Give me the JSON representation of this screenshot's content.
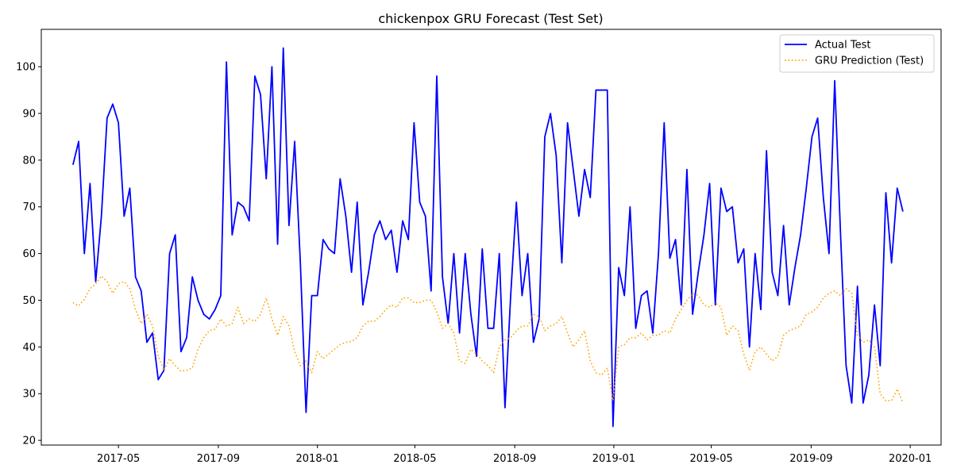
{
  "chart_data": {
    "type": "line",
    "title": "chickenpox GRU Forecast (Test Set)",
    "xlabel": "",
    "ylabel": "",
    "xlim": [
      "2017-01-26",
      "2020-02-08"
    ],
    "ylim": [
      19,
      108
    ],
    "yticks": [
      20,
      30,
      40,
      50,
      60,
      70,
      80,
      90,
      100
    ],
    "xticks": [
      {
        "date": "2017-05-01",
        "label": "2017-05"
      },
      {
        "date": "2017-09-01",
        "label": "2017-09"
      },
      {
        "date": "2018-01-01",
        "label": "2018-01"
      },
      {
        "date": "2018-05-01",
        "label": "2018-05"
      },
      {
        "date": "2018-09-01",
        "label": "2018-09"
      },
      {
        "date": "2019-01-01",
        "label": "2019-01"
      },
      {
        "date": "2019-05-01",
        "label": "2019-05"
      },
      {
        "date": "2019-09-01",
        "label": "2019-09"
      },
      {
        "date": "2020-01-01",
        "label": "2020-01"
      }
    ],
    "x_start": "2017-03-06",
    "x_step_days": 7,
    "grid": false,
    "legend_position": "top-right",
    "series": [
      {
        "name": "Actual Test",
        "color": "#0000ff",
        "style": "solid",
        "values": [
          79,
          84,
          60,
          75,
          54,
          68,
          89,
          92,
          88,
          68,
          74,
          55,
          52,
          41,
          43,
          33,
          35,
          60,
          64,
          39,
          42,
          55,
          50,
          47,
          46,
          48,
          51,
          101,
          64,
          71,
          70,
          67,
          98,
          94,
          76,
          100,
          62,
          104,
          66,
          84,
          58,
          26,
          51,
          51,
          63,
          61,
          60,
          76,
          68,
          56,
          71,
          49,
          56,
          64,
          67,
          63,
          65,
          56,
          67,
          63,
          88,
          71,
          68,
          52,
          98,
          55,
          45,
          60,
          43,
          60,
          47,
          38,
          61,
          44,
          44,
          60,
          27,
          51,
          71,
          51,
          60,
          41,
          46,
          85,
          90,
          81,
          58,
          88,
          78,
          68,
          78,
          72,
          95,
          95,
          95,
          23,
          57,
          51,
          70,
          44,
          51,
          52,
          43,
          60,
          88,
          59,
          63,
          49,
          78,
          47,
          56,
          64,
          75,
          49,
          74,
          69,
          70,
          58,
          61,
          40,
          60,
          48,
          82,
          56,
          51,
          66,
          49,
          57,
          64,
          74,
          85,
          89,
          72,
          60,
          97,
          65,
          36,
          28,
          53,
          28,
          34,
          49,
          36,
          73,
          58,
          74,
          69
        ]
      },
      {
        "name": "GRU Prediction (Test)",
        "color": "#ffa500",
        "style": "dotted",
        "values": [
          49.5,
          48.8,
          50.2,
          52.5,
          53.5,
          55.2,
          54.0,
          51.5,
          53.5,
          54.0,
          52.5,
          48.0,
          45.0,
          47.0,
          44.5,
          38.0,
          35.0,
          37.5,
          36.0,
          34.8,
          35.0,
          35.5,
          39.5,
          42.0,
          43.5,
          43.8,
          46.0,
          44.5,
          45.0,
          48.5,
          45.0,
          46.0,
          45.5,
          47.0,
          50.5,
          46.0,
          42.5,
          46.5,
          44.5,
          39.0,
          36.0,
          37.0,
          34.5,
          39.0,
          37.5,
          38.5,
          39.5,
          40.5,
          41.0,
          41.2,
          42.0,
          44.5,
          45.5,
          45.5,
          46.5,
          48.0,
          49.0,
          48.5,
          50.5,
          50.5,
          49.5,
          49.5,
          50.0,
          50.0,
          47.5,
          44.0,
          45.0,
          43.0,
          37.0,
          36.5,
          39.5,
          38.5,
          37.0,
          36.0,
          34.5,
          40.0,
          41.5,
          42.0,
          43.5,
          44.5,
          44.5,
          47.0,
          46.5,
          43.5,
          44.5,
          45.0,
          46.5,
          43.0,
          40.0,
          41.5,
          43.5,
          37.0,
          34.5,
          34.0,
          35.5,
          28.5,
          40.0,
          40.5,
          42.0,
          42.0,
          43.0,
          41.5,
          42.5,
          42.5,
          43.5,
          43.0,
          46.0,
          48.0,
          50.0,
          51.5,
          51.0,
          49.0,
          48.5,
          49.5,
          48.5,
          42.5,
          44.5,
          43.5,
          38.5,
          35.0,
          39.0,
          40.0,
          38.5,
          37.0,
          38.0,
          42.5,
          43.5,
          44.0,
          44.5,
          47.0,
          47.5,
          48.5,
          50.5,
          51.5,
          52.0,
          51.0,
          52.5,
          51.5,
          42.5,
          41.0,
          41.5,
          40.0,
          30.0,
          28.5,
          28.5,
          31.0,
          28.0
        ]
      }
    ]
  }
}
